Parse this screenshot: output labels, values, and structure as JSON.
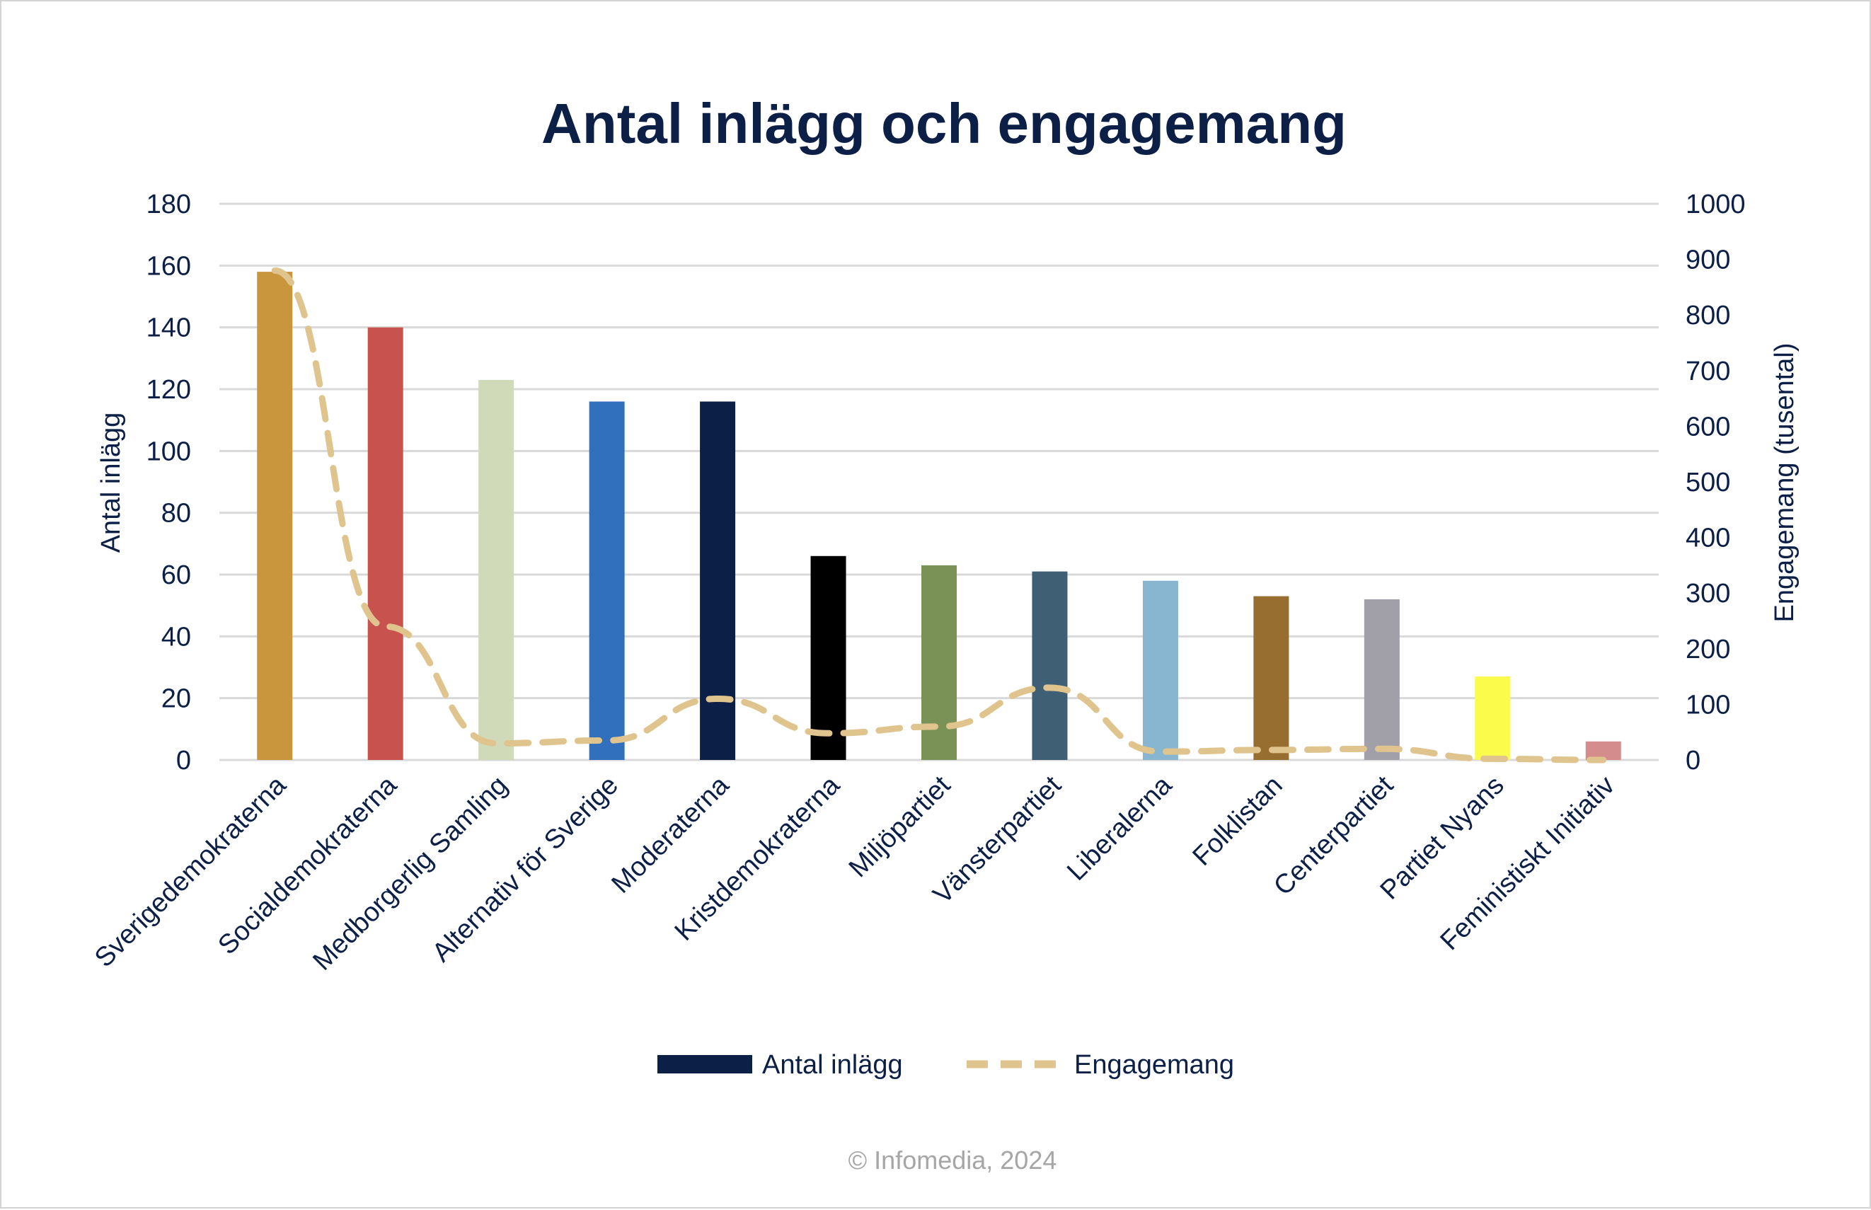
{
  "chart_data": {
    "type": "bar",
    "title": "Antal inlägg och engagemang",
    "ylabel": "Antal inlägg",
    "y2label": "Engagemang (tusental)",
    "ylim": [
      0,
      180
    ],
    "y2lim": [
      0,
      1000
    ],
    "yticks": [
      "0",
      "20",
      "40",
      "60",
      "80",
      "100",
      "120",
      "140",
      "160",
      "180"
    ],
    "y2ticks": [
      "0",
      "100",
      "200",
      "300",
      "400",
      "500",
      "600",
      "700",
      "800",
      "900",
      "1000"
    ],
    "grid": true,
    "legend_position": "bottom",
    "categories": [
      "Sverigedemokraterna",
      "Socialdemokraterna",
      "Medborgerlig Samling",
      "Alternativ för Sverige",
      "Moderaterna",
      "Kristdemokraterna",
      "Miljöpartiet",
      "Vänsterpartiet",
      "Liberalerna",
      "Folklistan",
      "Centerpartiet",
      "Partiet Nyans",
      "Feministiskt Initiativ"
    ],
    "series": [
      {
        "name": "Antal inlägg",
        "type": "bar",
        "axis": "left",
        "legend_color": "#0c1f47",
        "values": [
          158,
          140,
          123,
          116,
          116,
          66,
          63,
          61,
          58,
          53,
          52,
          27,
          6
        ]
      },
      {
        "name": "Engagemang",
        "type": "line",
        "axis": "right",
        "style": "dashed",
        "color": "#dfc48e",
        "values": [
          880,
          240,
          30,
          35,
          110,
          48,
          60,
          130,
          15,
          18,
          20,
          2,
          0
        ]
      }
    ],
    "bar_colors": [
      "#c9963e",
      "#c8534e",
      "#d0dab9",
      "#3170bd",
      "#0c1f47",
      "#000000",
      "#7a9255",
      "#3f5f75",
      "#88b6d1",
      "#976e2f",
      "#a19fa7",
      "#fbfb4c",
      "#d58c8c"
    ],
    "footer": "© Infomedia, 2024"
  }
}
